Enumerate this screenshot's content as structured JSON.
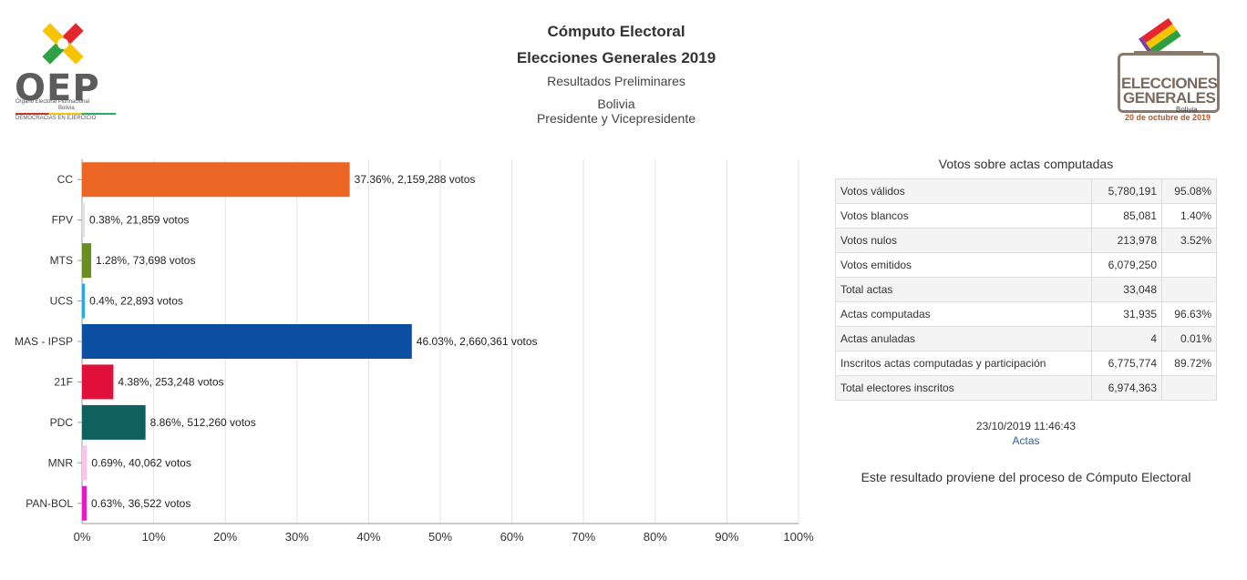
{
  "header": {
    "title": "Cómputo Electoral",
    "subtitle": "Elecciones Generales 2019",
    "status": "Resultados Preliminares",
    "region": "Bolivia",
    "office": "Presidente y Vicepresidente"
  },
  "oep_logo": {
    "name": "OEP",
    "line1": "Órgano Electoral Plurinacional",
    "line2": "Bolivia",
    "line3": "DEMOCRACIAS EN EJERCICIO"
  },
  "eg_logo": {
    "line1": "ELECCIONES",
    "line2": "GENERALES",
    "line3": "Bolivia",
    "line4": "20 de octubre de 2019"
  },
  "chart_data": {
    "type": "bar",
    "orientation": "horizontal",
    "categories": [
      "CC",
      "FPV",
      "MTS",
      "UCS",
      "MAS - IPSP",
      "21F",
      "PDC",
      "MNR",
      "PAN-BOL"
    ],
    "values": [
      37.36,
      0.38,
      1.28,
      0.4,
      46.03,
      4.38,
      8.86,
      0.69,
      0.63
    ],
    "data_labels": [
      "37.36%,  2,159,288 votos",
      "0.38%,  21,859 votos",
      "1.28%,  73,698 votos",
      "0.4%,  22,893 votos",
      "46.03%,  2,660,361 votos",
      "4.38%,  253,248 votos",
      "8.86%,  512,260 votos",
      "0.69%,  40,062 votos",
      "0.63%,  36,522 votos"
    ],
    "colors": [
      "#eb6625",
      "#e0e0e0",
      "#6b8e23",
      "#2ea7e0",
      "#0b4ea2",
      "#e0103a",
      "#10615e",
      "#f7c6e8",
      "#e718c8"
    ],
    "xlim": [
      0,
      100
    ],
    "xticks": [
      "0%",
      "10%",
      "20%",
      "30%",
      "40%",
      "50%",
      "60%",
      "70%",
      "80%",
      "90%",
      "100%"
    ],
    "grid": true
  },
  "summary": {
    "title": "Votos sobre actas computadas",
    "rows": [
      {
        "label": "Votos válidos",
        "value": "5,780,191",
        "pct": "95.08%"
      },
      {
        "label": "Votos blancos",
        "value": "85,081",
        "pct": "1.40%"
      },
      {
        "label": "Votos nulos",
        "value": "213,978",
        "pct": "3.52%"
      },
      {
        "label": "Votos emitidos",
        "value": "6,079,250",
        "pct": ""
      },
      {
        "label": "Total actas",
        "value": "33,048",
        "pct": ""
      },
      {
        "label": "Actas computadas",
        "value": "31,935",
        "pct": "96.63%"
      },
      {
        "label": "Actas anuladas",
        "value": "4",
        "pct": "0.01%"
      },
      {
        "label": "Inscritos actas computadas y participación",
        "value": "6,775,774",
        "pct": "89.72%"
      },
      {
        "label": "Total electores inscritos",
        "value": "6,974,363",
        "pct": ""
      }
    ],
    "timestamp": "23/10/2019 11:46:43",
    "link": "Actas",
    "note": "Este resultado proviene del proceso de Cómputo Electoral"
  }
}
